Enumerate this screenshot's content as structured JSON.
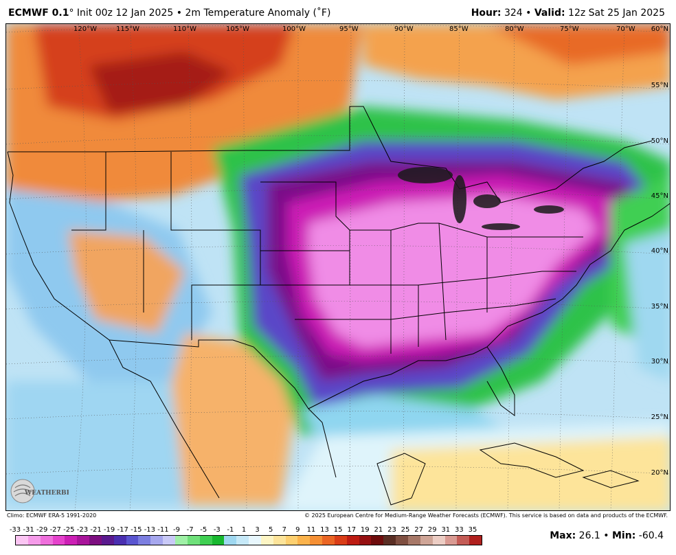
{
  "header": {
    "model": "ECMWF 0.1",
    "degree": "°",
    "init": "Init 00z 12 Jan 2025",
    "separator": "•",
    "product": "2m Temperature Anomaly (˚F)",
    "hour_label": "Hour:",
    "hour_value": "324",
    "valid_label": "Valid:",
    "valid_value": "12z Sat 25 Jan 2025"
  },
  "map": {
    "longitude_labels": [
      "120°W",
      "115°W",
      "110°W",
      "105°W",
      "100°W",
      "95°W",
      "90°W",
      "85°W",
      "80°W",
      "75°W",
      "70°W"
    ],
    "latitude_labels": [
      "60°N",
      "55°N",
      "50°N",
      "45°N",
      "40°N",
      "35°N",
      "30°N",
      "25°N",
      "20°N"
    ],
    "logo_text": "WEATHERBELL"
  },
  "footer": {
    "climo": "Climo: ECMWF ERA-5 1991-2020",
    "copyright": "© 2025 European Centre for Medium-Range Weather Forecasts (ECMWF). This service is based on data and products of the ECMWF."
  },
  "scale": {
    "labels": [
      "-33",
      "-31",
      "-29",
      "-27",
      "-25",
      "-23",
      "-21",
      "-19",
      "-17",
      "-15",
      "-13",
      "-11",
      "-9",
      "-7",
      "-5",
      "-3",
      "-1",
      "1",
      "3",
      "5",
      "7",
      "9",
      "11",
      "13",
      "15",
      "17",
      "19",
      "21",
      "23",
      "25",
      "27",
      "29",
      "31",
      "33",
      "35"
    ],
    "colors": [
      "#fbc5f3",
      "#f59be9",
      "#ef6fdc",
      "#e542cc",
      "#cc1fb5",
      "#a8149a",
      "#7d0e80",
      "#5a1a8e",
      "#4a2fb0",
      "#5a55d0",
      "#7c7ee0",
      "#a6a7ee",
      "#c9c9f7",
      "#9ff0a6",
      "#6fe07a",
      "#3fcf52",
      "#18b82f",
      "#9fd8f0",
      "#c6e9f8",
      "#e8f7fd",
      "#fdf5c4",
      "#fde49a",
      "#fdd070",
      "#fbb34c",
      "#f58f34",
      "#ea6524",
      "#d93d17",
      "#bd1c12",
      "#951011",
      "#6e0c0c",
      "#5a2e24",
      "#7f4f41",
      "#a77868",
      "#cfa597",
      "#eccdc4",
      "#d99a92",
      "#c45c56",
      "#b0201e"
    ],
    "max_label": "Max",
    "max_value": "26.1",
    "min_label": "Min",
    "min_value": "-60.4"
  }
}
